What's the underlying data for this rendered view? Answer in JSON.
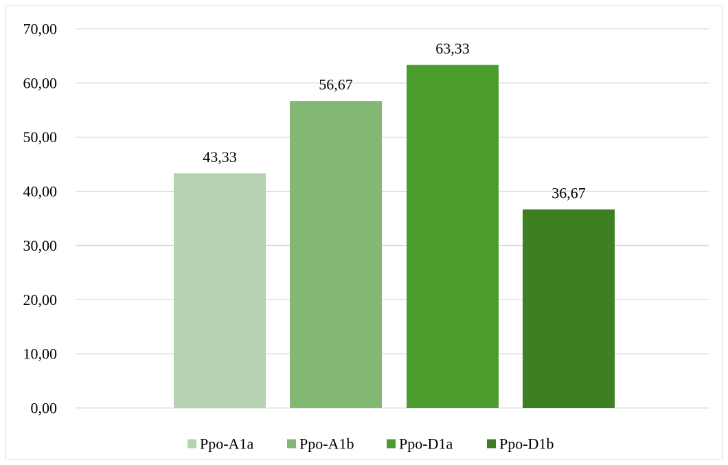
{
  "chart_data": {
    "type": "bar",
    "categories": [
      "Ppo-A1a",
      "Ppo-A1b",
      "Ppo-D1a",
      "Ppo-D1b"
    ],
    "values": [
      43.33,
      56.67,
      63.33,
      36.67
    ],
    "value_labels": [
      "43,33",
      "56,67",
      "63,33",
      "36,67"
    ],
    "colors": [
      "#b5d3b0",
      "#82b874",
      "#4a9d2c",
      "#3d7f22"
    ],
    "ylim": [
      0,
      70
    ],
    "yticks": [
      0,
      10,
      20,
      30,
      40,
      50,
      60,
      70
    ],
    "ytick_labels": [
      "0,00",
      "10,00",
      "20,00",
      "30,00",
      "40,00",
      "50,00",
      "60,00",
      "70,00"
    ],
    "title": "",
    "xlabel": "",
    "ylabel": "",
    "grid": true,
    "legend_position": "bottom",
    "gridline_color": "#d9d9d9"
  }
}
